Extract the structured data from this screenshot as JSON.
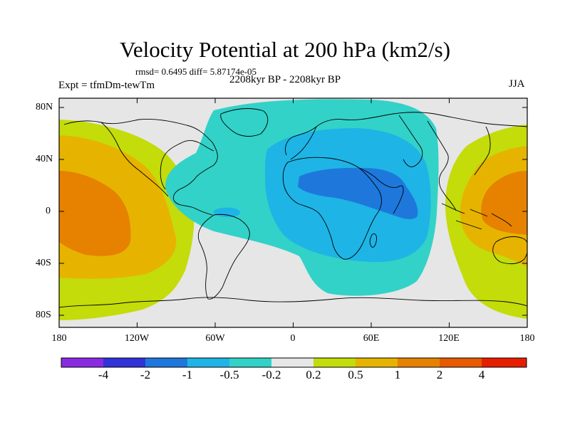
{
  "title": "Velocity Potential at 200 hPa (km2/s)",
  "stats": "rmsd= 0.6495 diff= 5.87174e-05",
  "expt": "Expt = tfmDm-tewTm",
  "period": "2208kyr BP - 2208kyr BP",
  "season": "JJA",
  "lat_labels": [
    "80N",
    "40N",
    "0",
    "40S",
    "80S"
  ],
  "lon_labels": [
    "180",
    "120W",
    "60W",
    "0",
    "60E",
    "120E",
    "180"
  ],
  "colorbar": {
    "labels": [
      "-4",
      "-2",
      "-1",
      "-0.5",
      "-0.2",
      "0.2",
      "0.5",
      "1",
      "2",
      "4"
    ],
    "colors": [
      "#8a2be2",
      "#3232d9",
      "#1e78dc",
      "#1eb4e6",
      "#32d2c8",
      "#e6e6e6",
      "#c3dc0a",
      "#e6b400",
      "#e68200",
      "#e65a00",
      "#e61e00"
    ]
  },
  "colors": {
    "neutral": "#e6e6e6",
    "cyan": "#32d2c8",
    "lightblue": "#1eb4e6",
    "blue": "#1e78dc",
    "green": "#c3dc0a",
    "gold": "#e6b400",
    "orange": "#e68200"
  }
}
